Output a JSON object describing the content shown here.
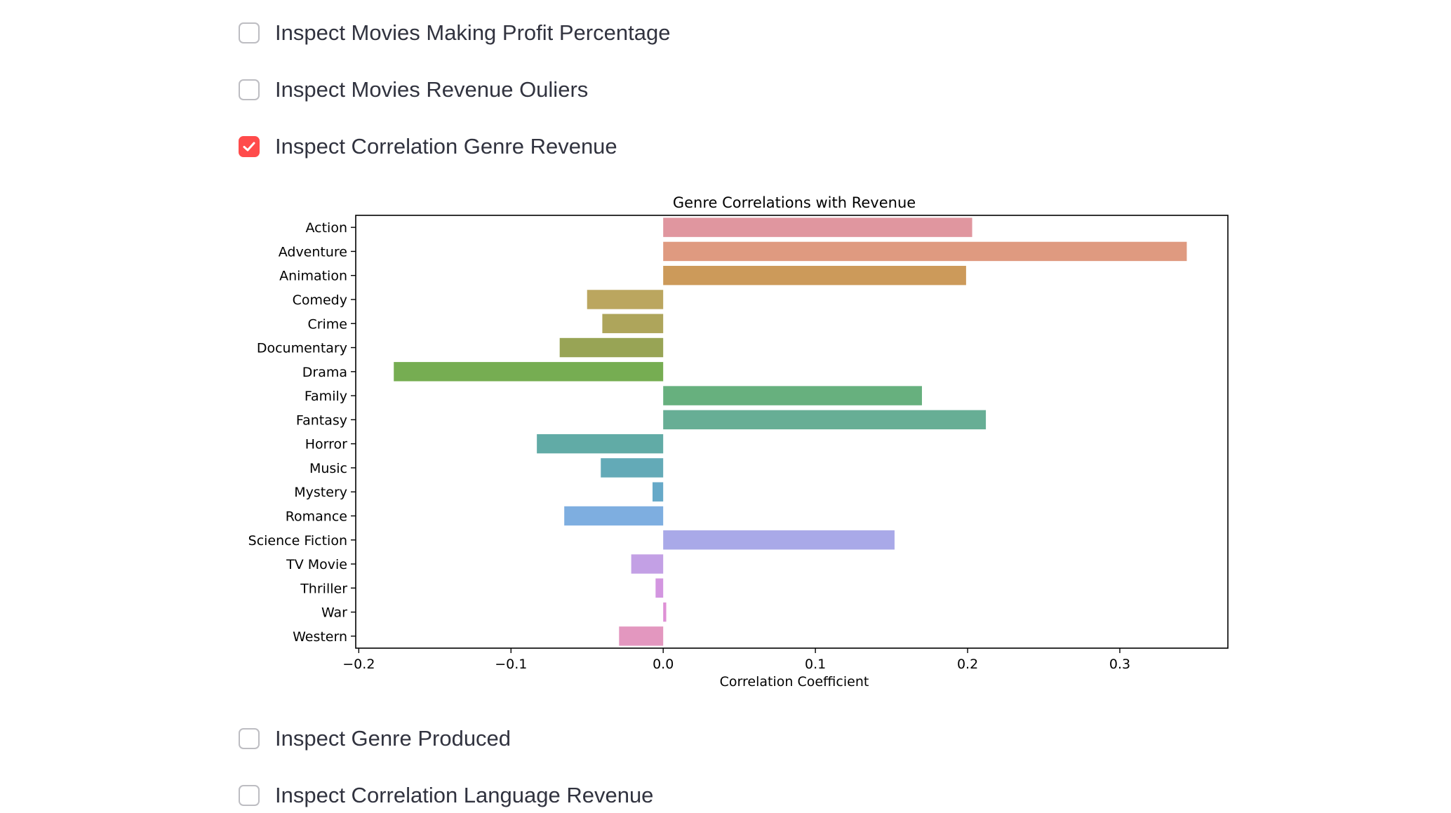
{
  "checkboxes": {
    "profit": {
      "label": "Inspect Movies Making Profit Percentage",
      "checked": false
    },
    "outliers": {
      "label": "Inspect Movies Revenue Ouliers",
      "checked": false
    },
    "genre_corr": {
      "label": "Inspect Correlation Genre Revenue",
      "checked": true
    },
    "genre_produced": {
      "label": "Inspect Genre Produced",
      "checked": false
    },
    "language_corr": {
      "label": "Inspect Correlation Language Revenue",
      "checked": false
    }
  },
  "colors": {
    "accent": "#ff4b4b",
    "text": "#31333f",
    "checkbox_border": "#bdbdc2"
  },
  "chart_data": {
    "type": "bar",
    "orientation": "horizontal",
    "title": "Genre Correlations with Revenue",
    "xlabel": "Correlation Coefficient",
    "ylabel": "",
    "xlim": [
      -0.202,
      0.371
    ],
    "xticks": [
      -0.2,
      -0.1,
      0.0,
      0.1,
      0.2,
      0.3
    ],
    "xtick_labels": [
      "−0.2",
      "−0.1",
      "0.0",
      "0.1",
      "0.2",
      "0.3"
    ],
    "grid": false,
    "categories": [
      "Action",
      "Adventure",
      "Animation",
      "Comedy",
      "Crime",
      "Documentary",
      "Drama",
      "Family",
      "Fantasy",
      "Horror",
      "Music",
      "Mystery",
      "Romance",
      "Science Fiction",
      "TV Movie",
      "Thriller",
      "War",
      "Western"
    ],
    "values": [
      0.203,
      0.344,
      0.199,
      -0.05,
      -0.04,
      -0.068,
      -0.177,
      0.17,
      0.212,
      -0.083,
      -0.041,
      -0.007,
      -0.065,
      0.152,
      -0.021,
      -0.005,
      0.002,
      -0.029
    ],
    "colors": [
      "#e0969f",
      "#df9a80",
      "#cc9a5a",
      "#bba65f",
      "#aea55b",
      "#98a455",
      "#76ad52",
      "#67b07e",
      "#67ae95",
      "#61aba6",
      "#63aab7",
      "#66a9c8",
      "#7eaee0",
      "#a9a9e8",
      "#c3a0e5",
      "#d396e0",
      "#de91d5",
      "#e397bf"
    ]
  }
}
